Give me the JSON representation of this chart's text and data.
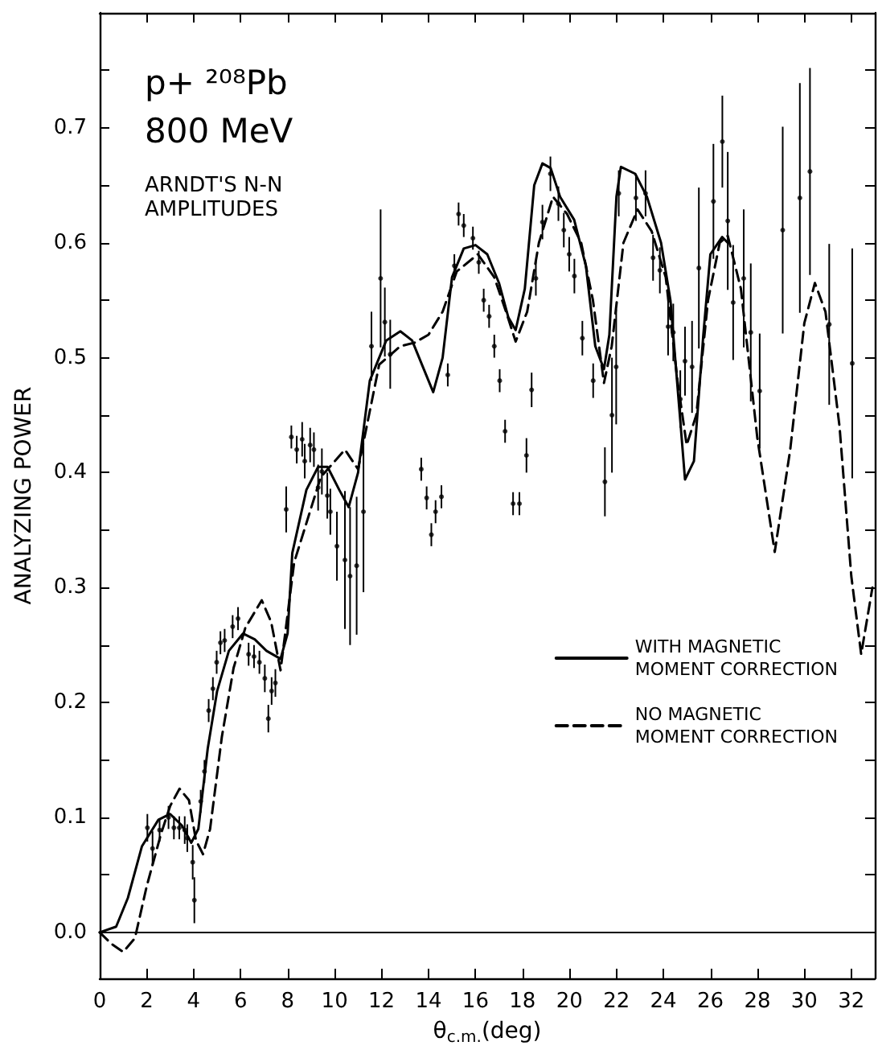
{
  "chart_data": {
    "type": "line",
    "xlabel": "θ$_{c.m.}$(deg)",
    "ylabel": "ANALYZING POWER",
    "annotations": [
      "p+ ²⁰⁸Pb",
      "800 MeV",
      "ARNDT'S N-N\nAMPLITUDES"
    ],
    "xlim": [
      0,
      33
    ],
    "xticks": [
      0,
      2,
      4,
      6,
      8,
      10,
      12,
      14,
      16,
      18,
      20,
      22,
      24,
      26,
      28,
      30,
      32
    ],
    "ylim": [
      -0.04,
      0.8
    ],
    "yticks": [
      {
        "value": 0,
        "label": "0.0"
      },
      {
        "value": 0.05,
        "label": null
      },
      {
        "value": 0.1,
        "label": "0.1"
      },
      {
        "value": 0.15,
        "label": null
      },
      {
        "value": 0.2,
        "label": "0.2"
      },
      {
        "value": 0.25,
        "label": null
      },
      {
        "value": 0.3,
        "label": "0.3"
      },
      {
        "value": 0.35,
        "label": null
      },
      {
        "value": 0.4,
        "label": "0.4"
      },
      {
        "value": 0.45,
        "label": null
      },
      {
        "value": 0.5,
        "label": "0.5"
      },
      {
        "value": 0.55,
        "label": null
      },
      {
        "value": 0.6,
        "label": "0.6"
      },
      {
        "value": 0.65,
        "label": null
      },
      {
        "value": 0.7,
        "label": "0.7"
      },
      {
        "value": 0.75,
        "label": null
      }
    ],
    "grid": false,
    "legend": "right",
    "ref_lines": [
      {
        "axis": "y",
        "value": 0,
        "color": "#000000",
        "line_style": "solid"
      }
    ],
    "series": [
      {
        "name": "WITH MAGNETIC\nMOMENT CORRECTION",
        "type": "line",
        "color": "#000000",
        "line_style": "solid",
        "marker": "none",
        "x": [
          0,
          0.7,
          1.2,
          1.8,
          2.5,
          3,
          3.5,
          3.9,
          4.2,
          4.6,
          5,
          5.5,
          6.1,
          6.6,
          7.1,
          7.7,
          8,
          8.2,
          8.8,
          9.3,
          9.7,
          10.2,
          10.6,
          11,
          11.5,
          12.2,
          12.8,
          13.3,
          13.8,
          14.2,
          14.6,
          15,
          15.5,
          16,
          16.5,
          17,
          17.4,
          17.71,
          18.1,
          18.5,
          18.85,
          19.2,
          19.6,
          20.2,
          20.7,
          21.1,
          21.47,
          21.7,
          22,
          22.19,
          22.8,
          23.3,
          23.9,
          24.3,
          24.7,
          24.92,
          25.3,
          25.7,
          26.0,
          26.5,
          26.74
        ],
        "values": [
          0,
          0.005,
          0.03,
          0.075,
          0.098,
          0.103,
          0.093,
          0.078,
          0.09,
          0.16,
          0.21,
          0.245,
          0.26,
          0.255,
          0.245,
          0.238,
          0.26,
          0.33,
          0.385,
          0.405,
          0.405,
          0.385,
          0.37,
          0.4,
          0.48,
          0.515,
          0.523,
          0.515,
          0.49,
          0.47,
          0.5,
          0.57,
          0.595,
          0.598,
          0.59,
          0.565,
          0.535,
          0.524,
          0.56,
          0.65,
          0.669,
          0.665,
          0.64,
          0.62,
          0.58,
          0.51,
          0.49,
          0.52,
          0.64,
          0.666,
          0.66,
          0.64,
          0.6,
          0.55,
          0.45,
          0.394,
          0.41,
          0.52,
          0.59,
          0.605,
          0.6
        ]
      },
      {
        "name": "NO MAGNETIC\nMOMENT CORRECTION",
        "type": "line",
        "color": "#000000",
        "line_style": "dashed",
        "marker": "none",
        "x": [
          0,
          0.5,
          1,
          1.5,
          2,
          2.6,
          3,
          3.4,
          3.8,
          4.1,
          4.4,
          4.7,
          5.2,
          5.7,
          6.2,
          6.9,
          7.3,
          7.7,
          8.28,
          9.41,
          10.44,
          11.0,
          11.9,
          12.8,
          13.4,
          14,
          14.6,
          15.2,
          16.1,
          16.8,
          17.3,
          17.71,
          18.2,
          18.7,
          19.3,
          19.9,
          20.5,
          21.0,
          21.47,
          21.8,
          22.3,
          22.9,
          23.5,
          24.1,
          24.6,
          24.99,
          25.4,
          25.9,
          26.4,
          26.74,
          27.3,
          28.0,
          28.74,
          29.4,
          30.0,
          30.45,
          30.9,
          31.5,
          32.0,
          32.42,
          32.9
        ],
        "values": [
          0,
          -0.01,
          -0.017,
          -0.005,
          0.04,
          0.085,
          0.11,
          0.125,
          0.115,
          0.08,
          0.068,
          0.09,
          0.17,
          0.23,
          0.265,
          0.289,
          0.27,
          0.228,
          0.322,
          0.396,
          0.42,
          0.403,
          0.494,
          0.51,
          0.513,
          0.52,
          0.54,
          0.575,
          0.59,
          0.57,
          0.54,
          0.514,
          0.54,
          0.6,
          0.64,
          0.625,
          0.6,
          0.55,
          0.478,
          0.51,
          0.6,
          0.629,
          0.61,
          0.57,
          0.48,
          0.424,
          0.45,
          0.55,
          0.6,
          0.606,
          0.56,
          0.43,
          0.331,
          0.42,
          0.53,
          0.565,
          0.54,
          0.44,
          0.31,
          0.242,
          0.3
        ]
      },
      {
        "type": "scatter",
        "color": "#000000",
        "marker": "circle",
        "x": [
          2.03,
          2.25,
          2.55,
          2.93,
          3.16,
          3.39,
          3.62,
          3.73,
          3.96,
          4.03,
          4.3,
          4.46,
          4.64,
          4.82,
          4.98,
          5.14,
          5.32,
          5.66,
          5.89,
          6.34,
          6.57,
          6.8,
          7.03,
          7.18,
          7.32,
          7.48,
          7.94,
          8.16,
          8.39,
          8.62,
          8.73,
          8.96,
          9.12,
          9.3,
          9.46,
          9.69,
          9.82,
          10.1,
          10.44,
          10.66,
          10.94,
          11.23,
          11.57,
          11.96,
          12.14,
          12.37,
          13.69,
          13.92,
          14.12,
          14.3,
          14.55,
          14.82,
          15.1,
          15.28,
          15.5,
          15.89,
          16.14,
          16.35,
          16.58,
          16.8,
          17.03,
          17.26,
          17.6,
          17.87,
          18.17,
          18.39,
          18.57,
          18.85,
          19.19,
          19.53,
          19.76,
          19.99,
          20.21,
          20.55,
          21.01,
          21.51,
          21.81,
          21.99,
          22.1,
          22.83,
          23.24,
          23.56,
          23.85,
          24.2,
          24.42,
          24.72,
          24.92,
          25.22,
          25.51,
          26.13,
          26.51,
          26.74,
          26.97,
          27.42,
          27.72,
          28.1,
          29.08,
          29.81,
          30.24,
          31.06,
          32.04
        ],
        "values": [
          0.091,
          0.073,
          0.089,
          0.1,
          0.091,
          0.091,
          0.089,
          0.082,
          0.061,
          0.028,
          0.114,
          0.14,
          0.193,
          0.212,
          0.235,
          0.252,
          0.254,
          0.266,
          0.273,
          0.242,
          0.24,
          0.235,
          0.221,
          0.186,
          0.21,
          0.217,
          0.368,
          0.431,
          0.42,
          0.429,
          0.41,
          0.424,
          0.42,
          0.387,
          0.401,
          0.38,
          0.366,
          0.336,
          0.324,
          0.31,
          0.319,
          0.366,
          0.51,
          0.569,
          0.531,
          0.503,
          0.403,
          0.378,
          0.346,
          0.366,
          0.379,
          0.485,
          0.58,
          0.625,
          0.615,
          0.604,
          0.583,
          0.55,
          0.536,
          0.51,
          0.48,
          0.436,
          0.373,
          0.373,
          0.415,
          0.472,
          0.569,
          0.618,
          0.66,
          0.634,
          0.611,
          0.59,
          0.571,
          0.517,
          0.48,
          0.392,
          0.45,
          0.492,
          0.643,
          0.639,
          0.643,
          0.587,
          0.576,
          0.527,
          0.522,
          0.464,
          0.497,
          0.492,
          0.578,
          0.636,
          0.688,
          0.619,
          0.548,
          0.569,
          0.522,
          0.471,
          0.611,
          0.639,
          0.662,
          0.529,
          0.495
        ],
        "errors": [
          0.012,
          0.015,
          0.01,
          0.01,
          0.01,
          0.01,
          0.012,
          0.012,
          0.015,
          0.02,
          0.01,
          0.01,
          0.01,
          0.01,
          0.01,
          0.01,
          0.01,
          0.01,
          0.01,
          0.01,
          0.01,
          0.01,
          0.012,
          0.012,
          0.012,
          0.012,
          0.02,
          0.01,
          0.012,
          0.015,
          0.015,
          0.015,
          0.015,
          0.02,
          0.02,
          0.02,
          0.02,
          0.03,
          0.06,
          0.06,
          0.06,
          0.07,
          0.03,
          0.06,
          0.03,
          0.03,
          0.01,
          0.01,
          0.01,
          0.01,
          0.01,
          0.01,
          0.01,
          0.01,
          0.01,
          0.01,
          0.01,
          0.01,
          0.01,
          0.01,
          0.01,
          0.01,
          0.01,
          0.01,
          0.015,
          0.015,
          0.015,
          0.015,
          0.015,
          0.015,
          0.015,
          0.015,
          0.015,
          0.015,
          0.015,
          0.03,
          0.05,
          0.05,
          0.02,
          0.02,
          0.02,
          0.02,
          0.02,
          0.025,
          0.025,
          0.025,
          0.03,
          0.04,
          0.07,
          0.05,
          0.04,
          0.06,
          0.05,
          0.06,
          0.06,
          0.05,
          0.09,
          0.1,
          0.09,
          0.07,
          0.1
        ]
      }
    ]
  }
}
